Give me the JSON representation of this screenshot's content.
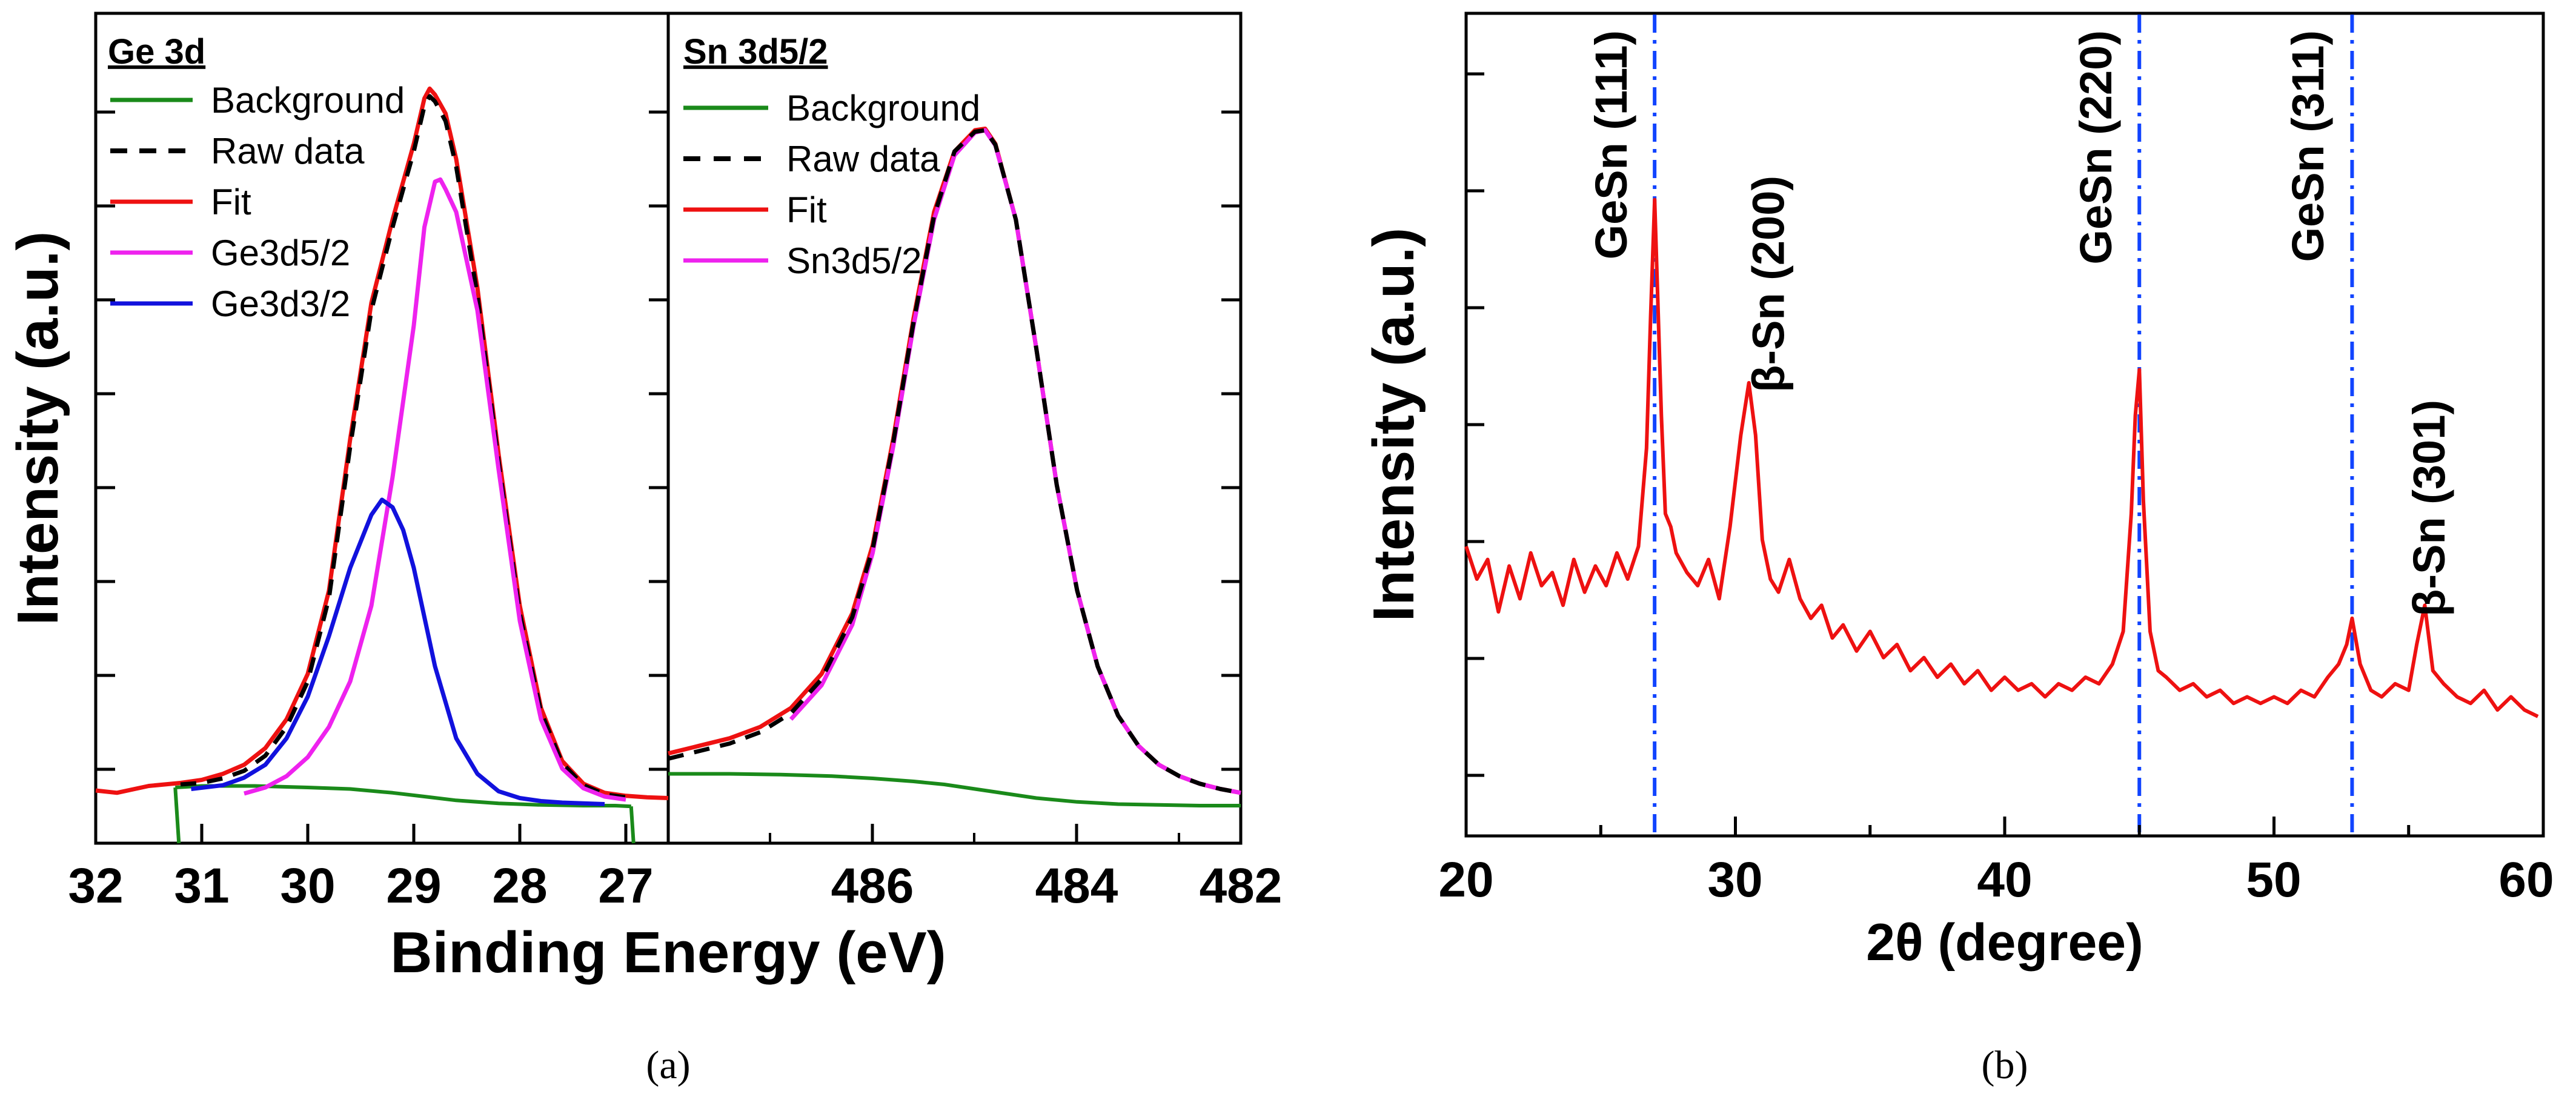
{
  "chart_data": [
    {
      "id": "a1",
      "type": "line",
      "title": "Ge 3d",
      "xlabel": "Binding Energy (eV)",
      "ylabel": "Intensity (a.u.)",
      "xlim": [
        32,
        26.6
      ],
      "ylim": [
        0,
        100
      ],
      "xticks": [
        "32",
        "31",
        "30",
        "29",
        "28",
        "27"
      ],
      "legend": [
        {
          "label": "Background",
          "color": "#1a8a1a",
          "dash": "solid"
        },
        {
          "label": "Raw data",
          "color": "#000000",
          "dash": "dashed"
        },
        {
          "label": "Fit",
          "color": "#ee1111",
          "dash": "solid"
        },
        {
          "label": "Ge3d5/2",
          "color": "#ee22ee",
          "dash": "solid"
        },
        {
          "label": "Ge3d3/2",
          "color": "#1111dd",
          "dash": "solid"
        }
      ],
      "series": [
        {
          "name": "Background",
          "color": "#1a8a1a",
          "dash": "solid",
          "width": 6,
          "x": [
            31.25,
            31.0,
            30.5,
            30.0,
            29.6,
            29.2,
            28.9,
            28.6,
            28.2,
            27.8,
            27.4,
            27.1,
            26.95
          ],
          "y": [
            4,
            4.2,
            4.2,
            4.0,
            3.8,
            3.3,
            2.8,
            2.3,
            1.9,
            1.7,
            1.6,
            1.6,
            1.5
          ]
        },
        {
          "name": "Fit",
          "color": "#ee1111",
          "dash": "solid",
          "width": 7,
          "x": [
            32.0,
            31.8,
            31.5,
            31.2,
            31.0,
            30.8,
            30.6,
            30.4,
            30.2,
            30.0,
            29.8,
            29.6,
            29.4,
            29.2,
            29.0,
            28.9,
            28.85,
            28.8,
            28.7,
            28.6,
            28.4,
            28.2,
            28.0,
            27.8,
            27.6,
            27.4,
            27.2,
            27.0,
            26.8,
            26.6
          ],
          "y": [
            3.6,
            3.3,
            4.2,
            4.6,
            5,
            5.8,
            7,
            9.2,
            13,
            19,
            30,
            50,
            68,
            79,
            89,
            95,
            96.3,
            95.5,
            93,
            87,
            70,
            48,
            28,
            14.5,
            7.5,
            4.5,
            3.3,
            2.9,
            2.7,
            2.6
          ]
        },
        {
          "name": "Raw data",
          "color": "#000000",
          "dash": "dashed",
          "width": 7,
          "x": [
            31.2,
            31.0,
            30.8,
            30.6,
            30.4,
            30.2,
            30.0,
            29.8,
            29.6,
            29.4,
            29.2,
            29.0,
            28.9,
            28.85,
            28.8,
            28.7,
            28.6,
            28.4,
            28.2,
            28.0,
            27.8,
            27.6,
            27.4,
            27.2,
            27.0
          ],
          "y": [
            4.4,
            4.6,
            5.2,
            6.2,
            8.2,
            12,
            18,
            29,
            49,
            67,
            78,
            88,
            94,
            95.3,
            94.6,
            92,
            86,
            69,
            47,
            27,
            14,
            7.2,
            4.3,
            3.1,
            2.7
          ]
        },
        {
          "name": "Ge3d5/2",
          "color": "#ee22ee",
          "dash": "solid",
          "width": 7,
          "x": [
            30.6,
            30.4,
            30.2,
            30.0,
            29.8,
            29.6,
            29.4,
            29.2,
            29.0,
            28.9,
            28.8,
            28.75,
            28.7,
            28.6,
            28.4,
            28.2,
            28.0,
            27.8,
            27.6,
            27.4,
            27.2,
            27.0
          ],
          "y": [
            3.2,
            4,
            5.5,
            8,
            12,
            18,
            28,
            45,
            65,
            78,
            84,
            84.3,
            83,
            80,
            67,
            46,
            26,
            13,
            6.5,
            3.9,
            2.8,
            2.4
          ]
        },
        {
          "name": "Ge3d3/2",
          "color": "#1111dd",
          "dash": "solid",
          "width": 7,
          "x": [
            31.1,
            30.8,
            30.6,
            30.4,
            30.2,
            30.0,
            29.8,
            29.6,
            29.4,
            29.3,
            29.2,
            29.1,
            29.0,
            28.8,
            28.6,
            28.4,
            28.2,
            28.0,
            27.8,
            27.6,
            27.4,
            27.2
          ],
          "y": [
            3.8,
            4.3,
            5.3,
            7,
            10.5,
            16,
            24,
            33,
            40,
            42,
            41,
            38,
            33,
            20,
            10.5,
            5.8,
            3.5,
            2.6,
            2.2,
            2.0,
            1.9,
            1.8
          ]
        }
      ]
    },
    {
      "id": "a2",
      "type": "line",
      "title": "Sn 3d5/2",
      "xlabel": "Binding Energy (eV)",
      "ylabel": "Intensity (a.u.)",
      "xlim": [
        487.6,
        482
      ],
      "ylim": [
        0,
        100
      ],
      "xticks": [
        "486",
        "484",
        "482"
      ],
      "legend": [
        {
          "label": "Background",
          "color": "#1a8a1a",
          "dash": "solid"
        },
        {
          "label": "Raw data",
          "color": "#000000",
          "dash": "dashed"
        },
        {
          "label": "Fit",
          "color": "#ee1111",
          "dash": "solid"
        },
        {
          "label": "Sn3d5/2",
          "color": "#ee22ee",
          "dash": "solid"
        }
      ],
      "series": [
        {
          "name": "Background",
          "color": "#1a8a1a",
          "dash": "solid",
          "width": 6,
          "x": [
            487.6,
            487.0,
            486.5,
            486.0,
            485.6,
            485.2,
            484.9,
            484.6,
            484.3,
            484.0,
            483.6,
            483.2,
            482.8,
            482.4,
            482.0
          ],
          "y": [
            5.8,
            5.8,
            5.7,
            5.5,
            5.2,
            4.8,
            4.4,
            3.8,
            3.2,
            2.6,
            2.1,
            1.8,
            1.7,
            1.6,
            1.6
          ]
        },
        {
          "name": "Fit",
          "color": "#ee1111",
          "dash": "solid",
          "width": 7,
          "x": [
            487.6,
            487.3,
            487.0,
            486.7,
            486.4,
            486.1,
            485.8,
            485.6,
            485.4,
            485.2,
            485.0,
            484.8,
            484.6,
            484.5,
            484.4,
            484.2,
            484.0,
            483.8,
            483.6,
            483.4,
            483.2,
            483.0,
            482.8,
            482.6,
            482.4,
            482.2,
            482.0
          ],
          "y": [
            8.5,
            9.5,
            10.5,
            12,
            14.5,
            19,
            27,
            36,
            50,
            66,
            80,
            88,
            90.8,
            91,
            89,
            79,
            62,
            44,
            30,
            20,
            13.5,
            9.5,
            7,
            5.5,
            4.5,
            3.8,
            3.3
          ]
        },
        {
          "name": "Sn3d5/2",
          "color": "#ee22ee",
          "dash": "solid",
          "width": 7,
          "x": [
            486.4,
            486.1,
            485.8,
            485.6,
            485.4,
            485.2,
            485.0,
            484.8,
            484.6,
            484.5,
            484.4,
            484.2,
            484.0,
            483.8,
            483.6,
            483.4,
            483.2,
            483.0,
            482.8,
            482.6,
            482.4,
            482.2,
            482.0
          ],
          "y": [
            13,
            17.5,
            25.5,
            35,
            49,
            65,
            79,
            87.5,
            90.5,
            90.8,
            88.8,
            79,
            62,
            44,
            30,
            20,
            13.5,
            9.5,
            7,
            5.5,
            4.5,
            3.8,
            3.3
          ]
        },
        {
          "name": "Raw data",
          "color": "#000000",
          "dash": "dashed",
          "width": 7,
          "x": [
            487.6,
            487.3,
            487.0,
            486.7,
            486.4,
            486.1,
            485.8,
            485.6,
            485.4,
            485.2,
            485.0,
            484.8,
            484.6,
            484.5,
            484.4,
            484.2,
            484.0,
            483.8,
            483.6,
            483.4,
            483.2,
            483.0,
            482.8,
            482.6,
            482.4,
            482.2,
            482.0
          ],
          "y": [
            7.8,
            8.8,
            9.8,
            11.3,
            13.8,
            18.3,
            26.5,
            35.5,
            49.5,
            65.5,
            79.5,
            88,
            90.6,
            90.8,
            88.9,
            79,
            62,
            44,
            30,
            20,
            13.5,
            9.5,
            7,
            5.5,
            4.5,
            3.8,
            3.3
          ]
        }
      ]
    },
    {
      "id": "b",
      "type": "line",
      "title": "",
      "xlabel": "2θ (degree)",
      "ylabel": "Intensity (a.u.)",
      "xlim": [
        20,
        60
      ],
      "ylim": [
        0,
        100
      ],
      "xticks": [
        "20",
        "30",
        "40",
        "50",
        "60"
      ],
      "ref_lines": [
        27.0,
        45.0,
        52.9
      ],
      "peak_labels": [
        {
          "text": "GeSn (111)",
          "x": 26.2
        },
        {
          "text": "β-Sn (200)",
          "x": 30.7
        },
        {
          "text": "GeSn (220)",
          "x": 44.2
        },
        {
          "text": "GeSn (311)",
          "x": 52.1
        },
        {
          "text": "β-Sn (301)",
          "x": 55.8
        }
      ],
      "series": [
        {
          "name": "XRD",
          "color": "#ee1111",
          "x": [
            20.0,
            20.4,
            20.8,
            21.2,
            21.6,
            22.0,
            22.4,
            22.8,
            23.2,
            23.6,
            24.0,
            24.4,
            24.8,
            25.2,
            25.6,
            26.0,
            26.4,
            26.7,
            26.85,
            27.0,
            27.1,
            27.25,
            27.4,
            27.6,
            27.8,
            28.2,
            28.6,
            29.0,
            29.4,
            29.8,
            30.2,
            30.5,
            30.75,
            31.0,
            31.3,
            31.6,
            32.0,
            32.4,
            32.8,
            33.2,
            33.6,
            34.0,
            34.5,
            35.0,
            35.5,
            36.0,
            36.5,
            37.0,
            37.5,
            38.0,
            38.5,
            39.0,
            39.5,
            40.0,
            40.5,
            41.0,
            41.5,
            42.0,
            42.5,
            43.0,
            43.5,
            44.0,
            44.4,
            44.7,
            44.85,
            45.0,
            45.15,
            45.4,
            45.7,
            46.0,
            46.5,
            47.0,
            47.5,
            48.0,
            48.5,
            49.0,
            49.5,
            50.0,
            50.5,
            51.0,
            51.5,
            52.0,
            52.4,
            52.7,
            52.9,
            53.2,
            53.6,
            54.0,
            54.5,
            55.0,
            55.3,
            55.6,
            55.9,
            56.3,
            56.8,
            57.3,
            57.8,
            58.3,
            58.8,
            59.3,
            59.8
          ],
          "y": [
            35,
            30,
            33,
            25,
            32,
            27,
            34,
            29,
            31,
            26,
            33,
            28,
            32,
            29,
            34,
            30,
            35,
            50,
            70,
            88,
            75,
            55,
            40,
            38,
            34,
            31,
            29,
            33,
            27,
            38,
            52,
            60,
            52,
            36,
            30,
            28,
            33,
            27,
            24,
            26,
            21,
            23,
            19,
            22,
            18,
            20,
            16,
            18,
            15,
            17,
            14,
            16,
            13,
            15,
            13,
            14,
            12,
            14,
            13,
            15,
            14,
            17,
            22,
            40,
            55,
            62,
            42,
            22,
            16,
            15,
            13,
            14,
            12,
            13,
            11,
            12,
            11,
            12,
            11,
            13,
            12,
            15,
            17,
            20,
            24,
            17,
            13,
            12,
            14,
            13,
            20,
            26,
            16,
            14,
            12,
            11,
            13,
            10,
            12,
            10,
            9
          ]
        }
      ]
    }
  ],
  "captions": {
    "a": "(a)",
    "b": "(b)"
  }
}
